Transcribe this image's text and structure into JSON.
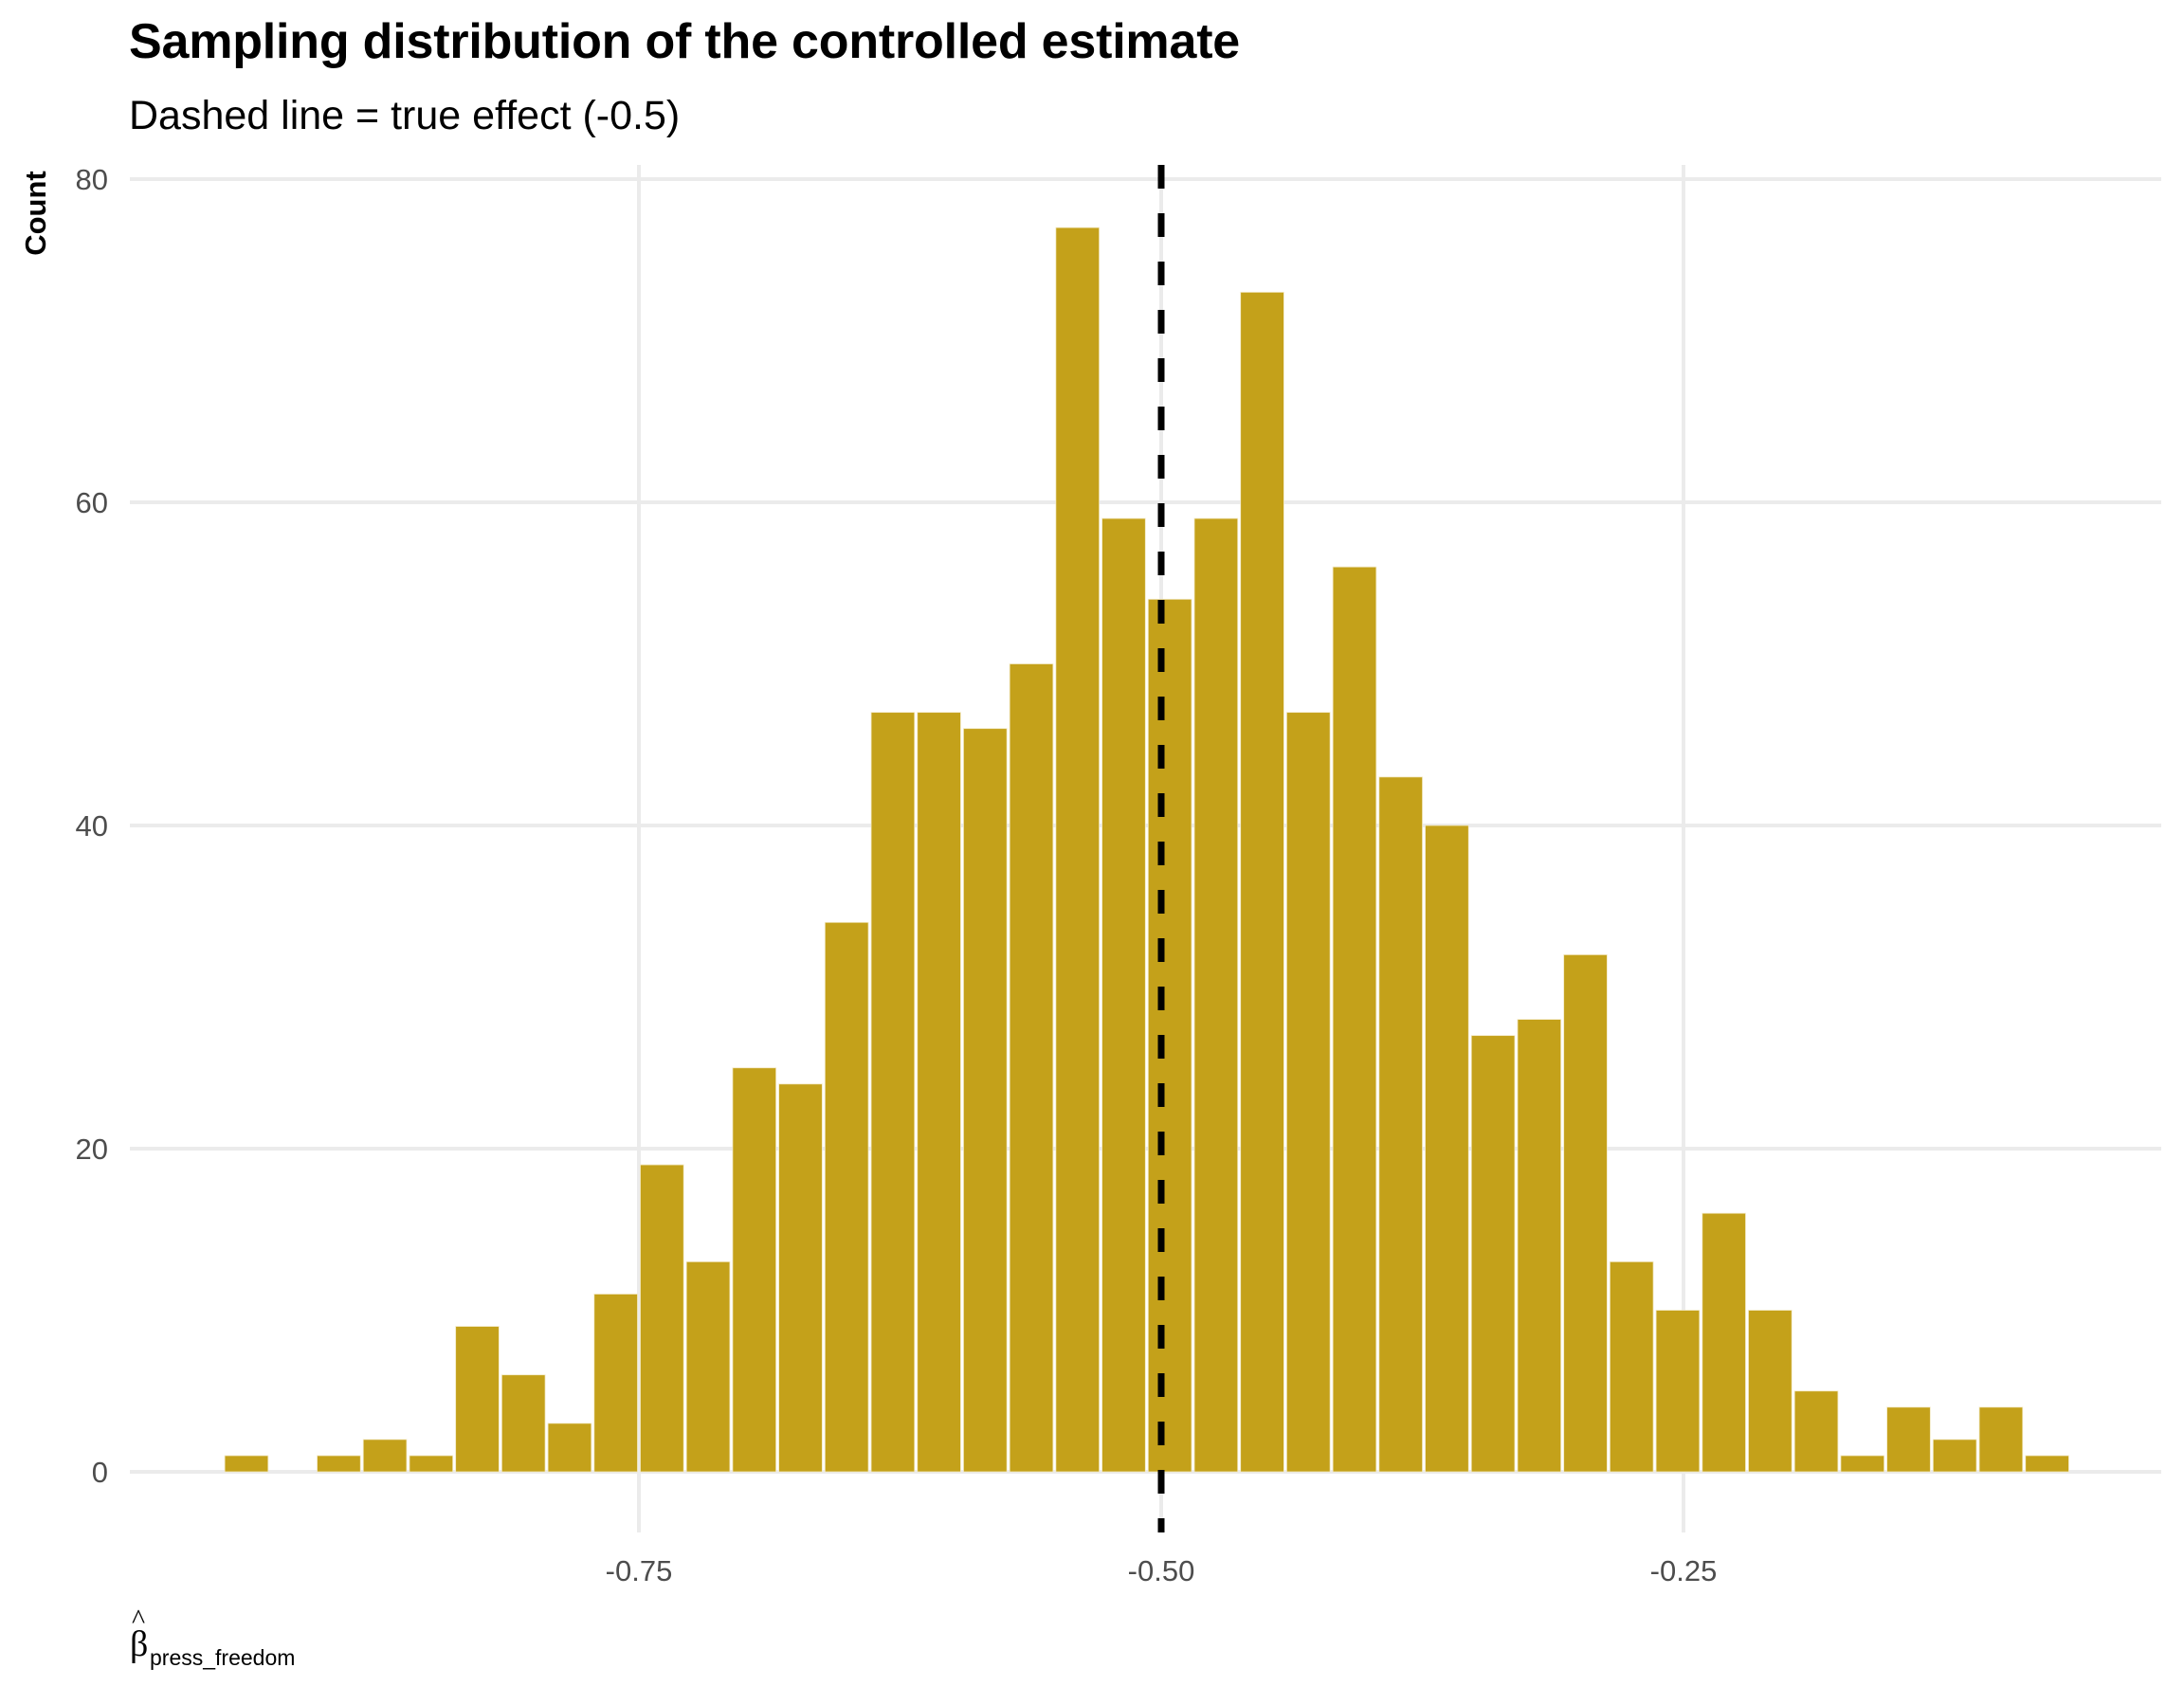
{
  "chart_data": {
    "type": "bar",
    "subtype": "histogram",
    "title": "Sampling distribution of the controlled estimate",
    "subtitle": "Dashed line = true effect (-0.5)",
    "xlabel": "β̂_press_freedom",
    "xlabel_parts": {
      "symbol": "β",
      "hat": "^",
      "subscript": "press_freedom"
    },
    "ylabel": "Count",
    "bin_width": 0.0221,
    "first_bin_start": -0.9489,
    "counts": [
      1,
      0,
      1,
      2,
      1,
      9,
      6,
      3,
      11,
      19,
      13,
      25,
      24,
      34,
      47,
      47,
      46,
      50,
      77,
      59,
      54,
      59,
      73,
      47,
      56,
      43,
      40,
      27,
      28,
      32,
      13,
      10,
      16,
      10,
      5,
      1,
      4,
      2,
      4,
      1
    ],
    "bar_color": "#C4A11A",
    "bar_outline": "#ffffff",
    "reference_line": {
      "x": -0.5,
      "style": "dashed",
      "color": "#000000",
      "label": "true effect"
    },
    "xlim": [
      -0.985,
      -0.015
    ],
    "ylim": [
      -3,
      80
    ],
    "x_ticks": [
      -0.75,
      -0.5,
      -0.25
    ],
    "x_tick_labels": [
      "-0.75",
      "-0.50",
      "-0.25"
    ],
    "y_ticks": [
      0,
      20,
      40,
      60,
      80
    ],
    "y_tick_labels": [
      "0",
      "20",
      "40",
      "60",
      "80"
    ],
    "grid": true,
    "legend": "none"
  }
}
